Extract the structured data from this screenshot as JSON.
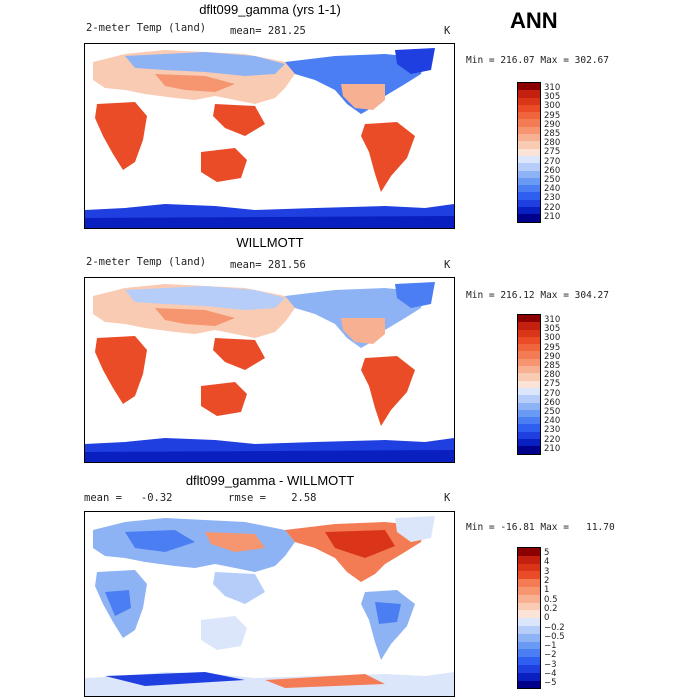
{
  "season": "ANN",
  "temp_colors": [
    "#00008b",
    "#0a1fbf",
    "#1f3fe0",
    "#2f5ff0",
    "#4a7ef2",
    "#6a9af3",
    "#8db3f5",
    "#b5cdf8",
    "#dce6fb",
    "#fbe4d7",
    "#f9cbb3",
    "#f7b091",
    "#f59670",
    "#f37c54",
    "#f0653c",
    "#ea4c28",
    "#db3519",
    "#c42010",
    "#8b0000"
  ],
  "temp_ticks": [
    "210",
    "220",
    "230",
    "240",
    "250",
    "260",
    "270",
    "275",
    "280",
    "285",
    "290",
    "295",
    "300",
    "305",
    "310"
  ],
  "diff_colors": [
    "#00008b",
    "#0a1fbf",
    "#1f3fe0",
    "#2f5ff0",
    "#4a7ef2",
    "#6a9af3",
    "#8db3f5",
    "#b5cdf8",
    "#dce6fb",
    "#fbe4d7",
    "#f9cbb3",
    "#f7b091",
    "#f59670",
    "#f37c54",
    "#ea4c28",
    "#db3519",
    "#c42010",
    "#8b0000"
  ],
  "diff_ticks": [
    "−5",
    "−4",
    "−3",
    "−2",
    "−1",
    "−0.5",
    "−0.2",
    "0",
    "0.2",
    "0.5",
    "1",
    "2",
    "3",
    "4",
    "5"
  ],
  "panels": [
    {
      "title": "dflt099_gamma (yrs 1-1)",
      "left": "2-meter Temp (land)",
      "mid": "mean= 281.25",
      "unit": "K",
      "minmax": "Min = 216.07 Max = 302.67",
      "type": "temp"
    },
    {
      "title": "WILLMOTT",
      "left": "2-meter Temp (land)",
      "mid": "mean= 281.56",
      "unit": "K",
      "minmax": "Min = 216.12 Max = 304.27",
      "type": "temp"
    },
    {
      "title": "dflt099_gamma - WILLMOTT",
      "left": "mean =   -0.32",
      "mid": "rmse =    2.58",
      "unit": "K",
      "minmax": "Min = -16.81 Max =   11.70",
      "type": "diff"
    }
  ]
}
